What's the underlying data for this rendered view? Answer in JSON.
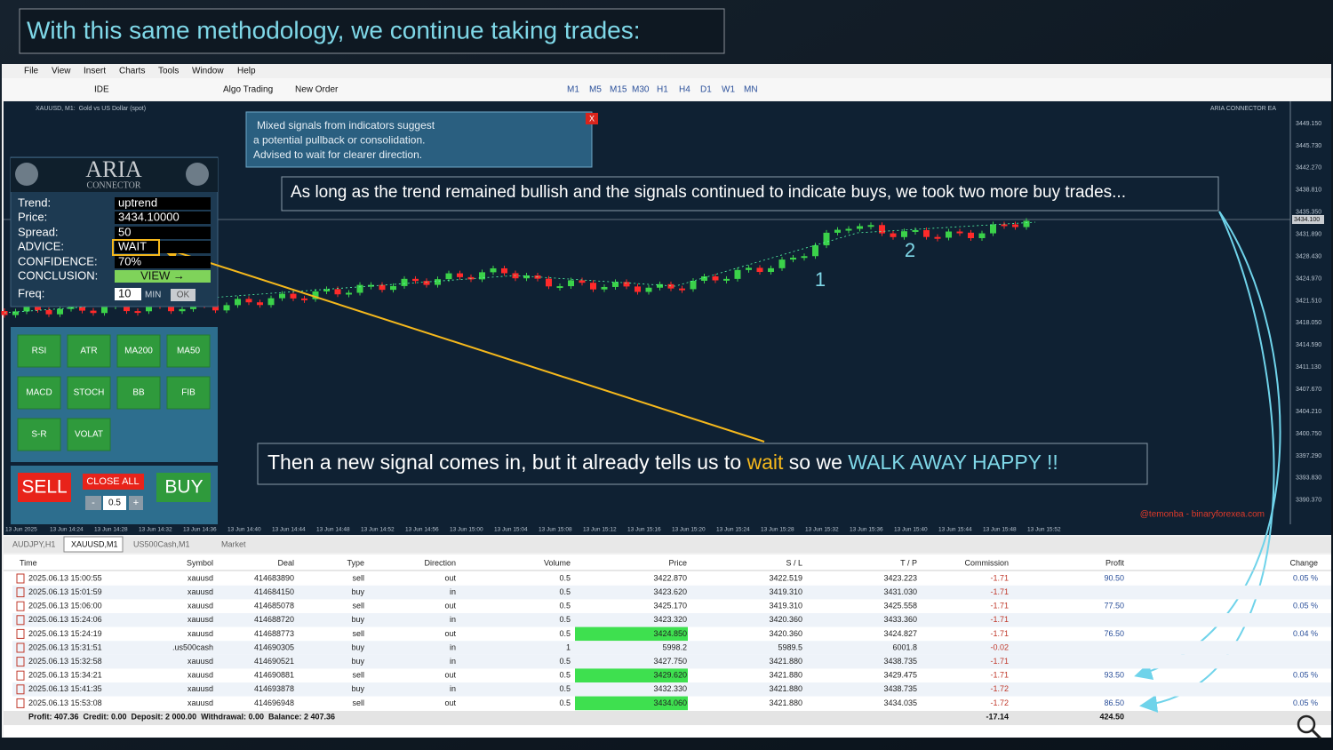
{
  "header": {
    "title": "With this same methodology, we continue taking trades:"
  },
  "menu": [
    "File",
    "View",
    "Insert",
    "Charts",
    "Tools",
    "Window",
    "Help"
  ],
  "toolbar": [
    "IDE",
    "Algo Trading",
    "New Order",
    "M1",
    "M5",
    "M15",
    "M30",
    "H1",
    "H4",
    "D1",
    "W1",
    "MN"
  ],
  "chart": {
    "symbol_title": "XAUUSD, M1:  Gold vs US Dollar (spot)",
    "ea_label": "ARIA CONNECTOR EA",
    "price_axis": [
      "3449.150",
      "3445.730",
      "3442.270",
      "3438.810",
      "3435.350",
      "3431.890",
      "3428.430",
      "3424.970",
      "3421.510",
      "3418.050",
      "3414.590",
      "3411.130",
      "3407.670",
      "3404.210",
      "3400.750",
      "3397.290",
      "3393.830",
      "3390.370"
    ],
    "current_price": "3434.100",
    "time_axis": [
      "13 Jun 2025",
      "13 Jun 14:24",
      "13 Jun 14:28",
      "13 Jun 14:32",
      "13 Jun 14:36",
      "13 Jun 14:40",
      "13 Jun 14:44",
      "13 Jun 14:48",
      "13 Jun 14:52",
      "13 Jun 14:56",
      "13 Jun 15:00",
      "13 Jun 15:04",
      "13 Jun 15:08",
      "13 Jun 15:12",
      "13 Jun 15:16",
      "13 Jun 15:20",
      "13 Jun 15:24",
      "13 Jun 15:28",
      "13 Jun 15:32",
      "13 Jun 15:36",
      "13 Jun 15:40",
      "13 Jun 15:44",
      "13 Jun 15:48",
      "13 Jun 15:52"
    ],
    "watermark": "@temonba - binaryforexea.com",
    "trade_markers": [
      "1",
      "2"
    ]
  },
  "popup": {
    "lines": [
      "Mixed signals from indicators suggest",
      "a potential pullback or consolidation.",
      "Advised to wait for clearer direction."
    ],
    "close": "X"
  },
  "aria_panel": {
    "name": "ARIA",
    "subtitle": "CONNECTOR",
    "rows": [
      {
        "label": "Trend:",
        "value": "uptrend"
      },
      {
        "label": "Price:",
        "value": "3434.10000"
      },
      {
        "label": "Spread:",
        "value": "50"
      },
      {
        "label": "ADVICE:",
        "value": "WAIT"
      },
      {
        "label": "CONFIDENCE:",
        "value": "70%"
      },
      {
        "label": "CONCLUSION:",
        "value": "VIEW →"
      },
      {
        "label": "Freq:",
        "value": "10"
      }
    ],
    "freq_unit": "MIN",
    "ok": "OK",
    "indicators": [
      "RSI",
      "ATR",
      "MA200",
      "MA50",
      "MACD",
      "STOCH",
      "BB",
      "FIB",
      "S-R",
      "VOLAT"
    ],
    "sell": "SELL",
    "close_all": "CLOSE ALL",
    "buy": "BUY",
    "minus": "-",
    "volume": "0.5",
    "plus": "+"
  },
  "annotations": {
    "top": "As long as the trend remained bullish and the signals continued to indicate buys, we took two more buy trades...",
    "bottom": [
      "Then a new signal comes in, but it already tells us to ",
      "wait",
      " so we ",
      "WALK AWAY HAPPY !!"
    ]
  },
  "tabs": [
    "AUDJPY,H1",
    "XAUUSD,M1",
    "US500Cash,M1",
    "Market"
  ],
  "table": {
    "columns": [
      "Time",
      "Symbol",
      "Deal",
      "Type",
      "Direction",
      "Volume",
      "Price",
      "S / L",
      "T / P",
      "Commission",
      "Profit",
      "Change"
    ],
    "rows": [
      {
        "time": "2025.06.13 15:00:55",
        "symbol": "xauusd",
        "deal": "414683890",
        "type": "sell",
        "direction": "out",
        "volume": "0.5",
        "price": "3422.870",
        "sl": "3422.519",
        "tp": "3423.223",
        "commission": "-1.71",
        "profit": "90.50",
        "change": "0.05 %"
      },
      {
        "time": "2025.06.13 15:01:59",
        "symbol": "xauusd",
        "deal": "414684150",
        "type": "buy",
        "direction": "in",
        "volume": "0.5",
        "price": "3423.620",
        "sl": "3419.310",
        "tp": "3431.030",
        "commission": "-1.71"
      },
      {
        "time": "2025.06.13 15:06:00",
        "symbol": "xauusd",
        "deal": "414685078",
        "type": "sell",
        "direction": "out",
        "volume": "0.5",
        "price": "3425.170",
        "sl": "3419.310",
        "tp": "3425.558",
        "commission": "-1.71",
        "profit": "77.50",
        "change": "0.05 %"
      },
      {
        "time": "2025.06.13 15:24:06",
        "symbol": "xauusd",
        "deal": "414688720",
        "type": "buy",
        "direction": "in",
        "volume": "0.5",
        "price": "3423.320",
        "sl": "3420.360",
        "tp": "3433.360",
        "commission": "-1.71"
      },
      {
        "time": "2025.06.13 15:24:19",
        "symbol": "xauusd",
        "deal": "414688773",
        "type": "sell",
        "direction": "out",
        "volume": "0.5",
        "price": "3424.850",
        "sl": "3420.360",
        "tp": "3424.827",
        "commission": "-1.71",
        "profit": "76.50",
        "change": "0.04 %",
        "highlight": true
      },
      {
        "time": "2025.06.13 15:31:51",
        "symbol": ".us500cash",
        "deal": "414690305",
        "type": "buy",
        "direction": "in",
        "volume": "1",
        "price": "5998.2",
        "sl": "5989.5",
        "tp": "6001.8",
        "commission": "-0.02"
      },
      {
        "time": "2025.06.13 15:32:58",
        "symbol": "xauusd",
        "deal": "414690521",
        "type": "buy",
        "direction": "in",
        "volume": "0.5",
        "price": "3427.750",
        "sl": "3421.880",
        "tp": "3438.735",
        "commission": "-1.71"
      },
      {
        "time": "2025.06.13 15:34:21",
        "symbol": "xauusd",
        "deal": "414690881",
        "type": "sell",
        "direction": "out",
        "volume": "0.5",
        "price": "3429.620",
        "sl": "3421.880",
        "tp": "3429.475",
        "commission": "-1.71",
        "profit": "93.50",
        "change": "0.05 %",
        "highlight": true
      },
      {
        "time": "2025.06.13 15:41:35",
        "symbol": "xauusd",
        "deal": "414693878",
        "type": "buy",
        "direction": "in",
        "volume": "0.5",
        "price": "3432.330",
        "sl": "3421.880",
        "tp": "3438.735",
        "commission": "-1.72"
      },
      {
        "time": "2025.06.13 15:53:08",
        "symbol": "xauusd",
        "deal": "414696948",
        "type": "sell",
        "direction": "out",
        "volume": "0.5",
        "price": "3434.060",
        "sl": "3421.880",
        "tp": "3434.035",
        "commission": "-1.72",
        "profit": "86.50",
        "change": "0.05 %",
        "highlight": true
      }
    ],
    "summary": {
      "text": "Profit: 407.36  Credit: 0.00  Deposit: 2 000.00  Withdrawal: 0.00  Balance: 2 407.36",
      "commission": "-17.14",
      "profit": "424.50"
    }
  }
}
